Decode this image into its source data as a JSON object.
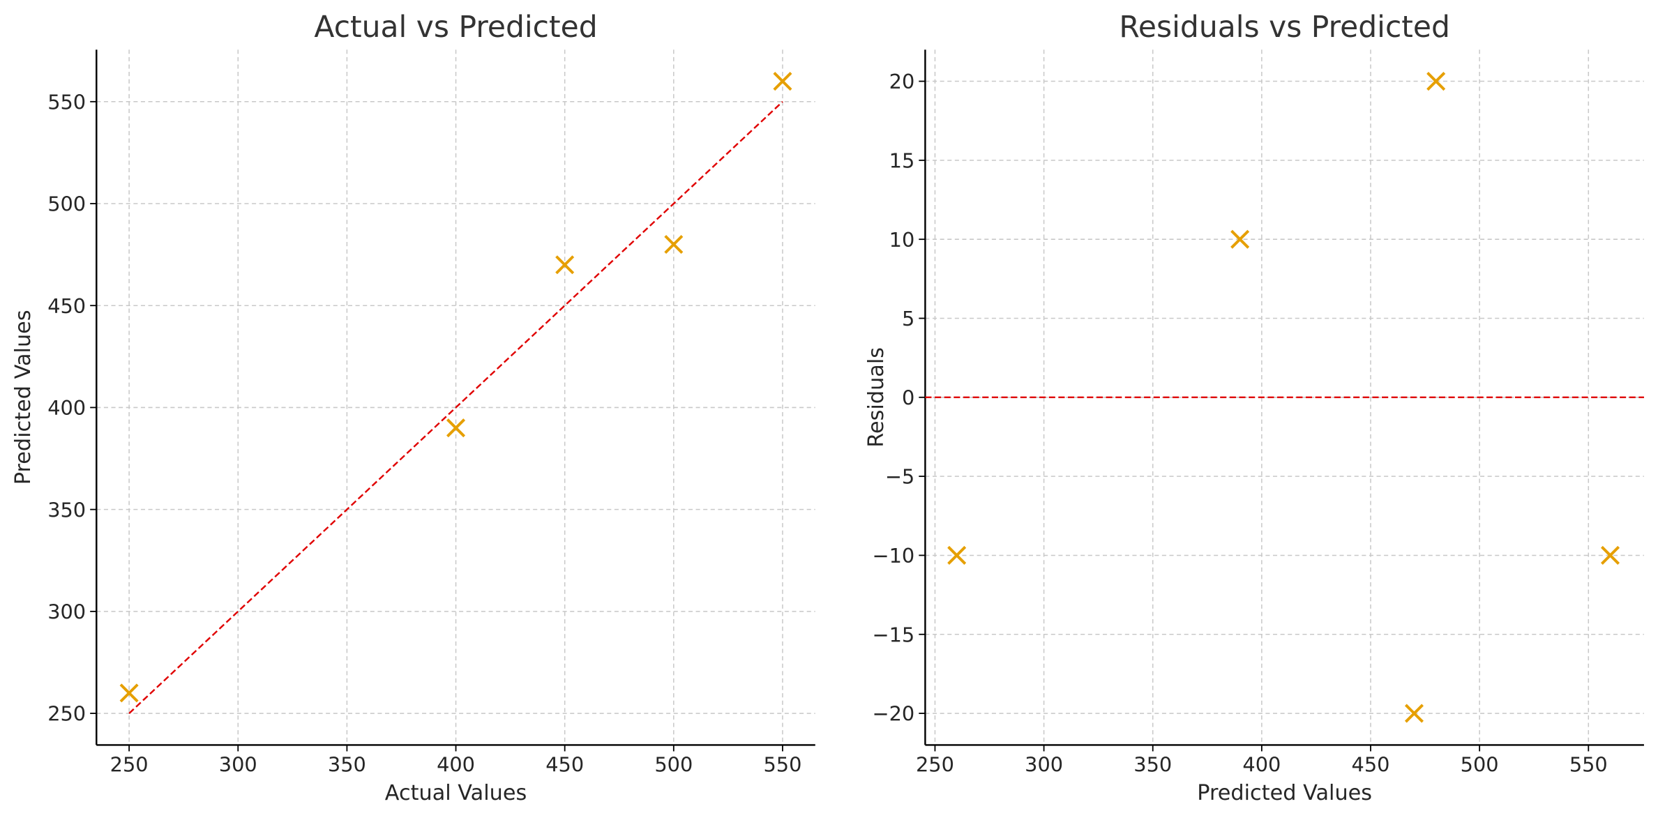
{
  "chart_data": [
    {
      "type": "scatter",
      "title": "Actual vs Predicted",
      "x_label": "Actual Values",
      "y_label": "Predicted Values",
      "x": [
        250,
        400,
        450,
        500,
        550
      ],
      "y": [
        260,
        390,
        470,
        480,
        560
      ],
      "color": "#e69f00",
      "marker": "x",
      "reference_line": {
        "x": [
          250,
          550
        ],
        "y": [
          250,
          550
        ],
        "color": "#e00000"
      },
      "xlim": [
        235,
        565
      ],
      "ylim": [
        234.5,
        575.5
      ],
      "xticks": [
        250,
        300,
        350,
        400,
        450,
        500,
        550
      ],
      "yticks": [
        250,
        300,
        350,
        400,
        450,
        500,
        550
      ],
      "grid": true
    },
    {
      "type": "scatter",
      "title": "Residuals vs Predicted",
      "x_label": "Predicted Values",
      "y_label": "Residuals",
      "x": [
        260,
        390,
        470,
        480,
        560
      ],
      "y": [
        -10,
        10,
        -20,
        20,
        -10
      ],
      "color": "#e69f00",
      "marker": "x",
      "reference_line": {
        "y": 0,
        "color": "#e00000"
      },
      "xlim": [
        245.5,
        575.5
      ],
      "ylim": [
        -22,
        22
      ],
      "xticks": [
        250,
        300,
        350,
        400,
        450,
        500,
        550
      ],
      "yticks": [
        {
          "value": -20,
          "label": "−20"
        },
        {
          "value": -15,
          "label": "−15"
        },
        {
          "value": -10,
          "label": "−10"
        },
        {
          "value": -5,
          "label": "−5"
        },
        0,
        5,
        10,
        15,
        20
      ],
      "grid": true
    }
  ]
}
